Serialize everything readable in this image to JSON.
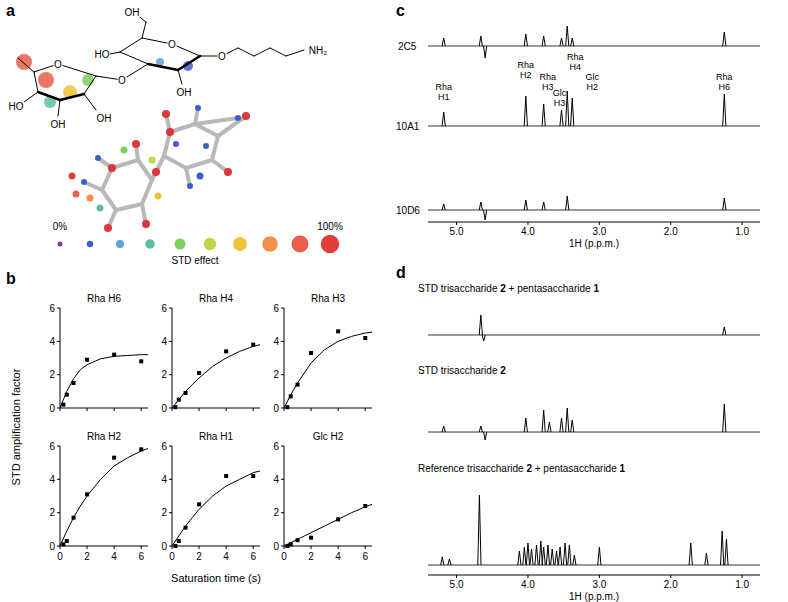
{
  "panels": {
    "a": {
      "letter": "a",
      "structure_labels": [
        "OH",
        "HO",
        "O",
        "O",
        "NH₂",
        "O",
        "OH",
        "O",
        "HO",
        "OH",
        "OH"
      ],
      "scale": {
        "title": "STD effect",
        "range": [
          0,
          100
        ],
        "ticks": [
          {
            "value": 0,
            "label": "0%"
          },
          {
            "value": 100,
            "label": "100%"
          }
        ],
        "colors": [
          "#7b3fa0",
          "#3a5fcd",
          "#5ba3e0",
          "#5fbf9a",
          "#7ccf5a",
          "#b7d94a",
          "#f0c23a",
          "#f0904a",
          "#e8604a",
          "#e0403a"
        ]
      }
    },
    "b": {
      "letter": "b",
      "xlabel": "Saturation time (s)",
      "ylabel": "STD amplification factor"
    },
    "c": {
      "letter": "c"
    },
    "d": {
      "letter": "d"
    }
  },
  "chart_data": [
    {
      "type": "scatter",
      "title": "Rha H6",
      "xlim": [
        0,
        6.5
      ],
      "ylim": [
        0,
        6
      ],
      "xticks": [
        0,
        2,
        4,
        6
      ],
      "yticks": [
        0,
        2,
        4,
        6
      ],
      "tick_labels": "y",
      "series": [
        {
          "type": "scatter",
          "marker": "square",
          "color": "#000000",
          "x": [
            0.25,
            0.5,
            1,
            2,
            4,
            6
          ],
          "values": [
            0.2,
            0.8,
            1.5,
            2.9,
            3.2,
            2.8
          ]
        },
        {
          "type": "line",
          "line_style": "solid",
          "color": "#000000",
          "x": [
            0,
            0.5,
            1,
            1.5,
            2,
            3,
            4,
            5,
            6,
            6.5
          ],
          "values": [
            0,
            1.0,
            1.75,
            2.3,
            2.6,
            2.95,
            3.1,
            3.15,
            3.2,
            3.2
          ]
        }
      ]
    },
    {
      "type": "scatter",
      "title": "Rha H4",
      "xlim": [
        0,
        6.5
      ],
      "ylim": [
        0,
        6
      ],
      "xticks": [
        0,
        2,
        4,
        6
      ],
      "yticks": [
        0,
        2,
        4,
        6
      ],
      "tick_labels": "y",
      "series": [
        {
          "type": "scatter",
          "marker": "square",
          "color": "#000000",
          "x": [
            0.25,
            0.5,
            1,
            2,
            4,
            6
          ],
          "values": [
            0.05,
            0.5,
            0.9,
            2.1,
            3.4,
            3.8
          ]
        },
        {
          "type": "line",
          "line_style": "solid",
          "color": "#000000",
          "x": [
            0,
            0.5,
            1,
            1.5,
            2,
            3,
            4,
            5,
            6,
            6.5
          ],
          "values": [
            0,
            0.5,
            1.0,
            1.4,
            1.8,
            2.5,
            3.0,
            3.4,
            3.7,
            3.8
          ]
        }
      ]
    },
    {
      "type": "scatter",
      "title": "Rha H3",
      "xlim": [
        0,
        6.5
      ],
      "ylim": [
        0,
        6
      ],
      "xticks": [
        0,
        2,
        4,
        6
      ],
      "yticks": [
        0,
        2,
        4,
        6
      ],
      "tick_labels": "y",
      "series": [
        {
          "type": "scatter",
          "marker": "square",
          "color": "#000000",
          "x": [
            0.25,
            0.5,
            1,
            2,
            4,
            6
          ],
          "values": [
            0.05,
            0.7,
            1.4,
            3.3,
            4.6,
            4.2
          ]
        },
        {
          "type": "line",
          "line_style": "solid",
          "color": "#000000",
          "x": [
            0,
            0.5,
            1,
            1.5,
            2,
            3,
            4,
            5,
            6,
            6.5
          ],
          "values": [
            0,
            0.8,
            1.5,
            2.1,
            2.7,
            3.5,
            4.0,
            4.3,
            4.5,
            4.55
          ]
        }
      ]
    },
    {
      "type": "scatter",
      "title": "Rha H2",
      "xlim": [
        0,
        6.5
      ],
      "ylim": [
        0,
        6
      ],
      "xticks": [
        0,
        2,
        4,
        6
      ],
      "yticks": [
        0,
        2,
        4,
        6
      ],
      "tick_labels": true,
      "series": [
        {
          "type": "scatter",
          "marker": "square",
          "color": "#000000",
          "x": [
            0.25,
            0.5,
            1,
            2,
            4,
            6
          ],
          "values": [
            0.1,
            0.3,
            1.7,
            3.1,
            5.3,
            5.8
          ]
        },
        {
          "type": "line",
          "line_style": "solid",
          "color": "#000000",
          "x": [
            0,
            0.5,
            1,
            1.5,
            2,
            3,
            4,
            5,
            6,
            6.5
          ],
          "values": [
            0,
            0.9,
            1.7,
            2.4,
            3.0,
            4.0,
            4.8,
            5.3,
            5.7,
            5.85
          ]
        }
      ]
    },
    {
      "type": "scatter",
      "title": "Rha H1",
      "xlim": [
        0,
        6.5
      ],
      "ylim": [
        0,
        6
      ],
      "xticks": [
        0,
        2,
        4,
        6
      ],
      "yticks": [
        0,
        2,
        4,
        6
      ],
      "tick_labels": true,
      "series": [
        {
          "type": "scatter",
          "marker": "square",
          "color": "#000000",
          "x": [
            0.25,
            0.5,
            1,
            2,
            4,
            6
          ],
          "values": [
            0.0,
            0.3,
            1.1,
            2.5,
            4.2,
            4.2
          ]
        },
        {
          "type": "line",
          "line_style": "solid",
          "color": "#000000",
          "x": [
            0,
            0.5,
            1,
            1.5,
            2,
            3,
            4,
            5,
            6,
            6.5
          ],
          "values": [
            0,
            0.6,
            1.2,
            1.7,
            2.2,
            3.0,
            3.6,
            4.0,
            4.4,
            4.5
          ]
        }
      ]
    },
    {
      "type": "scatter",
      "title": "Glc H2",
      "xlim": [
        0,
        6.5
      ],
      "ylim": [
        0,
        6
      ],
      "xticks": [
        0,
        2,
        4,
        6
      ],
      "yticks": [
        0,
        2,
        4,
        6
      ],
      "tick_labels": true,
      "series": [
        {
          "type": "scatter",
          "marker": "square",
          "color": "#000000",
          "x": [
            0.25,
            0.5,
            1,
            2,
            4,
            6
          ],
          "values": [
            0.0,
            0.1,
            0.35,
            0.5,
            1.6,
            2.4
          ]
        },
        {
          "type": "line",
          "line_style": "solid",
          "color": "#000000",
          "x": [
            0,
            0.5,
            1,
            1.5,
            2,
            3,
            4,
            5,
            6,
            6.5
          ],
          "values": [
            0,
            0.2,
            0.4,
            0.6,
            0.8,
            1.2,
            1.6,
            2.0,
            2.35,
            2.5
          ]
        }
      ]
    },
    {
      "type": "spectrum",
      "xlabel": "1H (p.p.m.)",
      "xlim": [
        5.4,
        0.75
      ],
      "xticks": [
        {
          "value": 5,
          "label": "5.0"
        },
        {
          "value": 4,
          "label": "4.0"
        },
        {
          "value": 3,
          "label": "3.0"
        },
        {
          "value": 2,
          "label": "2.0"
        },
        {
          "value": 1,
          "label": "1.0"
        }
      ],
      "tick_labels": "x",
      "series": [
        {
          "name": "2C5",
          "color": "#000000",
          "x": [
            5.18,
            4.66,
            4.6,
            4.03,
            3.78,
            3.53,
            3.45,
            3.38,
            1.25
          ],
          "values": [
            8,
            10,
            -12,
            12,
            10,
            8,
            20,
            8,
            14
          ]
        },
        {
          "name": "10A1",
          "color": "#000000",
          "x": [
            5.18,
            4.03,
            3.78,
            3.53,
            3.45,
            3.38,
            1.25
          ],
          "values": [
            14,
            30,
            22,
            16,
            35,
            28,
            32
          ]
        },
        {
          "name": "10D6",
          "color": "#000000",
          "x": [
            5.18,
            4.66,
            4.6,
            4.03,
            3.78,
            3.45,
            1.25
          ],
          "values": [
            6,
            8,
            -10,
            10,
            8,
            14,
            12
          ]
        }
      ],
      "annotations": [
        {
          "text": "Rha H1",
          "x": 5.18
        },
        {
          "text": "Rha H2",
          "x": 4.03
        },
        {
          "text": "Rha H3",
          "x": 3.78
        },
        {
          "text": "Glc H3",
          "x": 3.53
        },
        {
          "text": "Rha H4",
          "x": 3.45
        },
        {
          "text": "Glc H2",
          "x": 3.38
        },
        {
          "text": "Rha H6",
          "x": 1.25
        }
      ]
    },
    {
      "type": "spectrum",
      "xlabel": "1H (p.p.m.)",
      "xlim": [
        5.4,
        0.75
      ],
      "xticks": [
        {
          "value": 5,
          "label": "5.0"
        },
        {
          "value": 4,
          "label": "4.0"
        },
        {
          "value": 3,
          "label": "3.0"
        },
        {
          "value": 2,
          "label": "2.0"
        },
        {
          "value": 1,
          "label": "1.0"
        }
      ],
      "tick_labels": "x",
      "series": [
        {
          "name": "STD trisaccharide 2 + pentasaccharide 1",
          "color": "#000000",
          "x": [
            4.66,
            4.62,
            1.25
          ],
          "values": [
            20,
            -6,
            8
          ]
        },
        {
          "name": "STD trisaccharide 2",
          "color": "#000000",
          "x": [
            5.18,
            4.66,
            4.6,
            4.03,
            3.78,
            3.7,
            3.53,
            3.45,
            3.38,
            1.25
          ],
          "values": [
            6,
            6,
            -8,
            14,
            22,
            10,
            14,
            24,
            12,
            28
          ]
        },
        {
          "name": "Reference trisaccharide 2 + pentasaccharide 1",
          "color": "#000000",
          "x": [
            5.2,
            5.1,
            4.68,
            4.12,
            4.05,
            4.0,
            3.95,
            3.88,
            3.82,
            3.78,
            3.72,
            3.66,
            3.6,
            3.55,
            3.48,
            3.42,
            3.35,
            3.0,
            1.72,
            1.5,
            1.28,
            1.22
          ],
          "values": [
            8,
            6,
            70,
            14,
            18,
            22,
            16,
            20,
            24,
            18,
            20,
            16,
            14,
            18,
            22,
            20,
            10,
            18,
            22,
            12,
            34,
            26
          ]
        }
      ]
    }
  ]
}
